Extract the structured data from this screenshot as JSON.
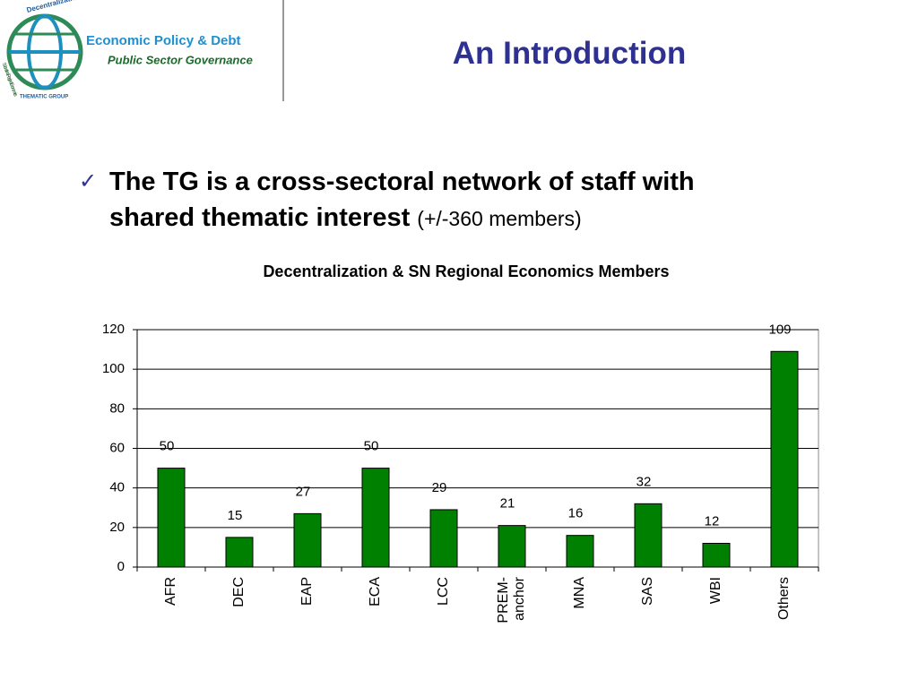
{
  "header": {
    "title": "An Introduction",
    "logo": {
      "line1": "Economic Policy & Debt",
      "line2": "Public Sector Governance",
      "arc_top": "Decentralization",
      "arc_left": "Subnational Regional Economics",
      "group": "THEMATIC GROUP"
    }
  },
  "bullet": {
    "bold": "The TG is a cross-sectoral network of staff with shared thematic interest",
    "normal": "(+/-360 members)"
  },
  "chart_data": {
    "type": "bar",
    "title": "Decentralization & SN Regional Economics Members",
    "categories": [
      "AFR",
      "DEC",
      "EAP",
      "ECA",
      "LCC",
      "PREM-anchor",
      "MNA",
      "SAS",
      "WBI",
      "Others"
    ],
    "values": [
      50,
      15,
      27,
      50,
      29,
      21,
      16,
      32,
      12,
      109
    ],
    "color": "#008000",
    "ylim": [
      0,
      120
    ],
    "yticks": [
      0,
      20,
      40,
      60,
      80,
      100,
      120
    ],
    "grid": true
  }
}
